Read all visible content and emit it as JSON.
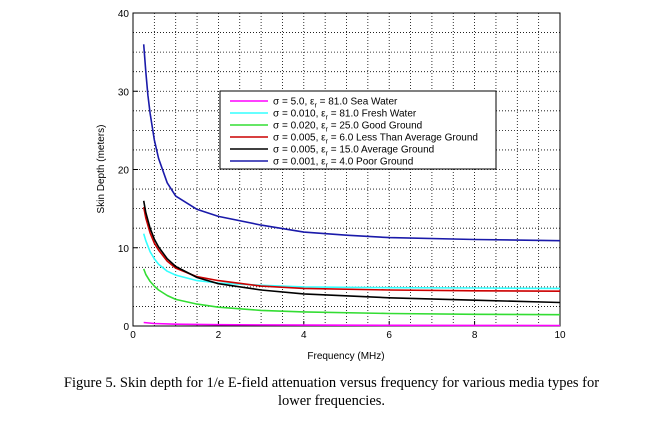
{
  "caption": {
    "line1": "Figure 5. Skin depth for 1/e E-field attenuation versus frequency for various media types for",
    "line2": "lower frequencies."
  },
  "chart_data": {
    "type": "line",
    "xlabel": "Frequency (MHz)",
    "ylabel": "Skin Depth (meters)",
    "xlim": [
      0,
      10
    ],
    "ylim": [
      0,
      40
    ],
    "x_ticks": [
      0,
      2,
      4,
      6,
      8,
      10
    ],
    "y_ticks": [
      0,
      10,
      20,
      30,
      40
    ],
    "grid": true,
    "legend_position": "top-right",
    "series": [
      {
        "name_parts": [
          "σ = 5.0, ε",
          "r",
          " = 81.0 Sea Water"
        ],
        "color": "#ff00ff",
        "x": [
          0.25,
          0.5,
          1,
          2,
          4,
          6,
          8,
          10
        ],
        "y": [
          0.45,
          0.32,
          0.23,
          0.16,
          0.11,
          0.09,
          0.08,
          0.07
        ]
      },
      {
        "name_parts": [
          "σ = 0.010, ε",
          "r",
          " = 81.0 Fresh Water"
        ],
        "color": "#33ffff",
        "x": [
          0.25,
          0.3,
          0.4,
          0.5,
          0.6,
          0.8,
          1.0,
          1.5,
          2,
          3,
          4,
          6,
          8,
          10
        ],
        "y": [
          11.8,
          10.9,
          9.5,
          8.6,
          7.9,
          7.0,
          6.5,
          5.8,
          5.5,
          5.2,
          5.0,
          4.9,
          4.85,
          4.8
        ]
      },
      {
        "name_parts": [
          "σ = 0.020, ε",
          "r",
          " = 25.0 Good Ground"
        ],
        "color": "#33dd33",
        "x": [
          0.25,
          0.3,
          0.4,
          0.5,
          0.6,
          0.8,
          1.0,
          1.5,
          2,
          3,
          4,
          6,
          8,
          10
        ],
        "y": [
          7.3,
          6.6,
          5.7,
          5.1,
          4.6,
          3.9,
          3.4,
          2.8,
          2.4,
          2.0,
          1.8,
          1.6,
          1.5,
          1.45
        ]
      },
      {
        "name_parts": [
          "σ = 0.005, ε",
          "r",
          " = 6.0 Less Than Average Ground"
        ],
        "color": "#cc0000",
        "x": [
          0.25,
          0.3,
          0.4,
          0.5,
          0.6,
          0.8,
          1.0,
          1.5,
          2,
          3,
          4,
          6,
          8,
          10
        ],
        "y": [
          15.2,
          13.8,
          11.9,
          10.6,
          9.7,
          8.3,
          7.4,
          6.3,
          5.8,
          5.1,
          4.8,
          4.6,
          4.5,
          4.45
        ]
      },
      {
        "name_parts": [
          "σ = 0.005, ε",
          "r",
          " = 15.0 Average Ground"
        ],
        "color": "#000000",
        "x": [
          0.25,
          0.3,
          0.4,
          0.5,
          0.6,
          0.8,
          1.0,
          1.5,
          2,
          3,
          4,
          6,
          8,
          10
        ],
        "y": [
          16.0,
          14.5,
          12.5,
          11.1,
          10.1,
          8.6,
          7.6,
          6.2,
          5.4,
          4.6,
          4.1,
          3.6,
          3.3,
          3.0
        ]
      },
      {
        "name_parts": [
          "σ = 0.001, ε",
          "r",
          " = 4.0 Poor Ground"
        ],
        "color": "#1a1aaa",
        "x": [
          0.25,
          0.3,
          0.35,
          0.4,
          0.5,
          0.6,
          0.8,
          1.0,
          1.5,
          2,
          3,
          4,
          5,
          6,
          8,
          10
        ],
        "y": [
          36.0,
          32.5,
          29.5,
          27.2,
          23.8,
          21.4,
          18.3,
          16.6,
          14.9,
          14.0,
          12.9,
          12.0,
          11.6,
          11.3,
          11.05,
          10.9
        ]
      }
    ]
  }
}
